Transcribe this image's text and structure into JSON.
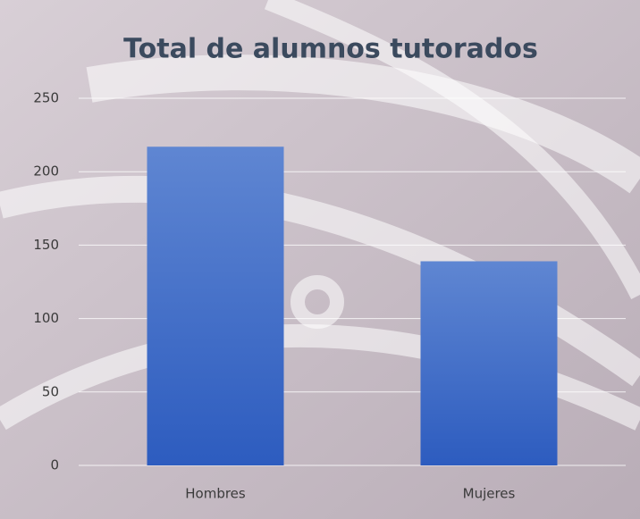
{
  "chart_data": {
    "type": "bar",
    "title": "Total de alumnos tutorados",
    "categories": [
      "Hombres",
      "Mujeres"
    ],
    "values": [
      217,
      139
    ],
    "color": "#3f6cc8",
    "ylim": [
      0,
      250
    ],
    "yticks": [
      0,
      50,
      100,
      150,
      200,
      250
    ],
    "grid": true
  }
}
